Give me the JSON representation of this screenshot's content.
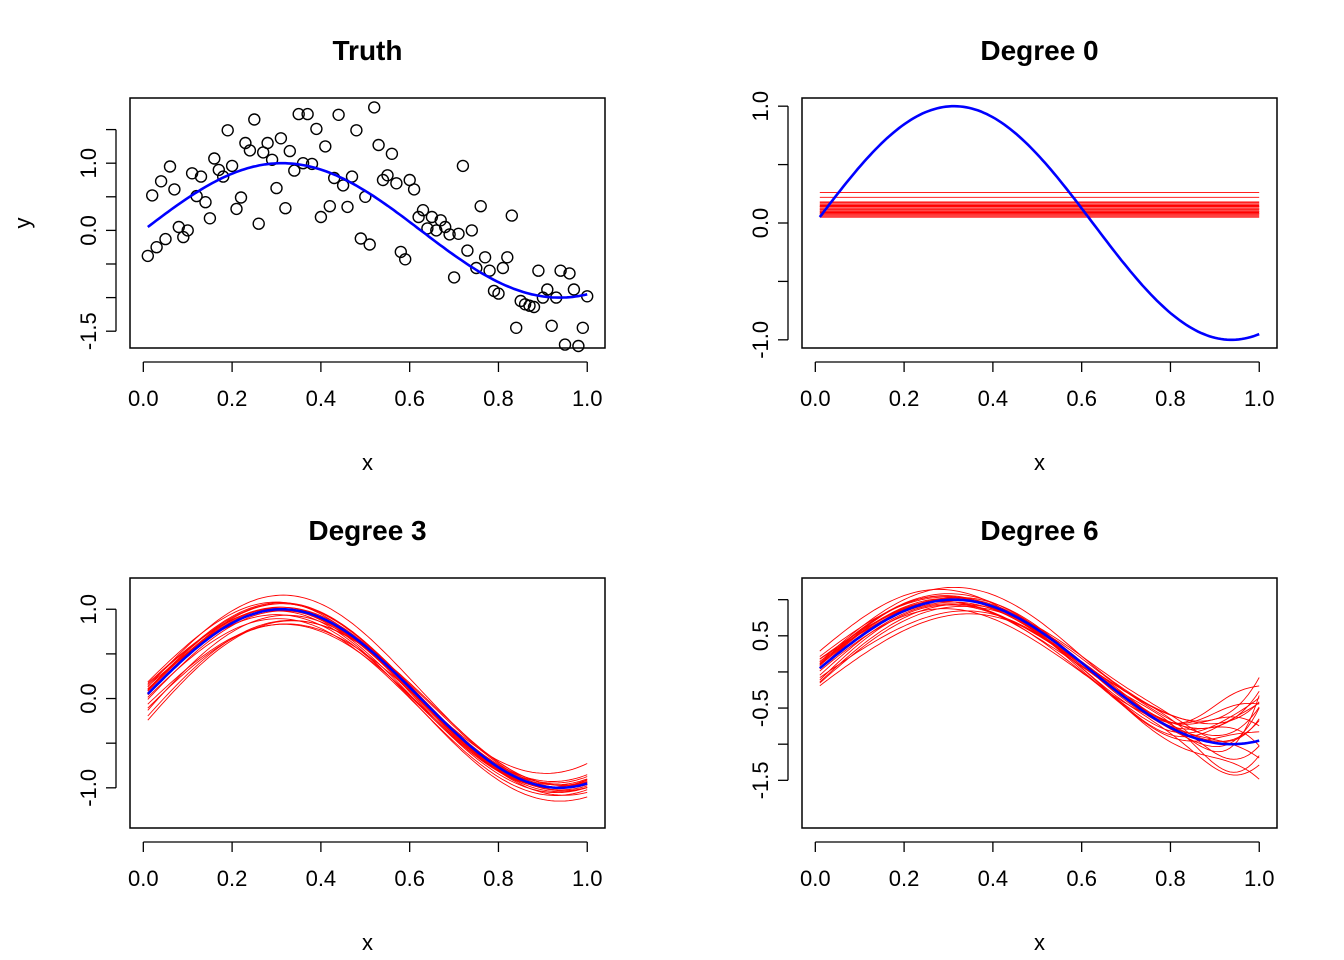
{
  "chart_data": [
    {
      "type": "scatter",
      "title": "Truth",
      "xlabel": "x",
      "ylabel": "y",
      "xlim": [
        -0.03,
        1.04
      ],
      "ylim": [
        -1.75,
        1.97
      ],
      "xticks": [
        0.0,
        0.2,
        0.4,
        0.6,
        0.8,
        1.0
      ],
      "xtick_labels": [
        "0.0",
        "0.2",
        "0.4",
        "0.6",
        "0.8",
        "1.0"
      ],
      "yticks": [
        -1.5,
        -1.0,
        -0.5,
        0.0,
        0.5,
        1.0,
        1.5
      ],
      "ytick_labels": [
        "-1.5",
        "",
        "",
        "0.0",
        "",
        "1.0",
        ""
      ],
      "truth": {
        "color": "#0000ff",
        "function": "sin(2*pi*x*0.8)"
      },
      "points_x": [
        0.01,
        0.02,
        0.03,
        0.04,
        0.05,
        0.06,
        0.07,
        0.08,
        0.09,
        0.1,
        0.11,
        0.12,
        0.13,
        0.14,
        0.15,
        0.16,
        0.17,
        0.18,
        0.19,
        0.2,
        0.21,
        0.22,
        0.23,
        0.24,
        0.25,
        0.26,
        0.27,
        0.28,
        0.29,
        0.3,
        0.31,
        0.32,
        0.33,
        0.34,
        0.35,
        0.36,
        0.37,
        0.38,
        0.39,
        0.4,
        0.41,
        0.42,
        0.43,
        0.44,
        0.45,
        0.46,
        0.47,
        0.48,
        0.49,
        0.5,
        0.51,
        0.52,
        0.53,
        0.54,
        0.55,
        0.56,
        0.57,
        0.58,
        0.59,
        0.6,
        0.61,
        0.62,
        0.63,
        0.64,
        0.65,
        0.66,
        0.67,
        0.68,
        0.69,
        0.7,
        0.71,
        0.72,
        0.73,
        0.74,
        0.75,
        0.76,
        0.77,
        0.78,
        0.79,
        0.8,
        0.81,
        0.82,
        0.83,
        0.84,
        0.85,
        0.86,
        0.87,
        0.88,
        0.89,
        0.9,
        0.91,
        0.92,
        0.93,
        0.94,
        0.95,
        0.96,
        0.97,
        0.98,
        0.99,
        1.0
      ],
      "points_y": [
        -0.38,
        0.52,
        -0.25,
        0.73,
        -0.13,
        0.95,
        0.61,
        0.05,
        -0.1,
        0.0,
        0.85,
        0.51,
        0.8,
        0.42,
        0.18,
        1.07,
        0.9,
        0.8,
        1.49,
        0.96,
        0.32,
        0.49,
        1.3,
        1.19,
        1.65,
        0.1,
        1.16,
        1.3,
        1.05,
        0.63,
        1.37,
        0.33,
        1.18,
        0.89,
        1.73,
        1.0,
        1.73,
        0.99,
        1.51,
        0.2,
        1.25,
        0.36,
        0.78,
        1.72,
        0.67,
        0.35,
        0.8,
        1.49,
        -0.12,
        0.5,
        -0.21,
        1.83,
        1.27,
        0.75,
        0.82,
        1.14,
        0.7,
        -0.32,
        -0.43,
        0.75,
        0.61,
        0.2,
        0.3,
        0.03,
        0.2,
        0.0,
        0.15,
        0.05,
        -0.06,
        -0.7,
        -0.05,
        0.96,
        -0.3,
        0.0,
        -0.56,
        0.36,
        -0.4,
        -0.6,
        -0.9,
        -0.94,
        -0.56,
        -0.4,
        0.22,
        -1.45,
        -1.05,
        -1.1,
        -1.12,
        -1.14,
        -0.6,
        -1.0,
        -0.88,
        -1.42,
        -1.0,
        -0.6,
        -1.7,
        -0.64,
        -0.88,
        -1.72,
        -1.45,
        -0.98
      ]
    },
    {
      "type": "line",
      "title": "Degree 0",
      "xlabel": "x",
      "ylabel": "",
      "xlim": [
        -0.03,
        1.04
      ],
      "ylim": [
        -1.07,
        1.07
      ],
      "xticks": [
        0.0,
        0.2,
        0.4,
        0.6,
        0.8,
        1.0
      ],
      "xtick_labels": [
        "0.0",
        "0.2",
        "0.4",
        "0.6",
        "0.8",
        "1.0"
      ],
      "yticks": [
        -1.0,
        -0.5,
        0.0,
        0.5,
        1.0
      ],
      "ytick_labels": [
        "-1.0",
        "",
        "0.0",
        "",
        "1.0"
      ],
      "truth": {
        "color": "#0000ff",
        "function": "sin(2*pi*x*0.8)"
      },
      "fit_color": "#ff0000",
      "degree": 0,
      "fits": [
        [
          0.26
        ],
        [
          0.22
        ],
        [
          0.18
        ],
        [
          0.16
        ],
        [
          0.15
        ],
        [
          0.14
        ],
        [
          0.13
        ],
        [
          0.12
        ],
        [
          0.11
        ],
        [
          0.1
        ],
        [
          0.09
        ],
        [
          0.08
        ],
        [
          0.07
        ],
        [
          0.06
        ],
        [
          0.05
        ],
        [
          0.12
        ],
        [
          0.14
        ],
        [
          0.1
        ],
        [
          0.08
        ],
        [
          0.17
        ]
      ]
    },
    {
      "type": "line",
      "title": "Degree 3",
      "xlabel": "x",
      "ylabel": "",
      "xlim": [
        -0.03,
        1.04
      ],
      "ylim": [
        -1.45,
        1.35
      ],
      "xticks": [
        0.0,
        0.2,
        0.4,
        0.6,
        0.8,
        1.0
      ],
      "xtick_labels": [
        "0.0",
        "0.2",
        "0.4",
        "0.6",
        "0.8",
        "1.0"
      ],
      "yticks": [
        -1.0,
        -0.5,
        0.0,
        0.5,
        1.0
      ],
      "ytick_labels": [
        "-1.0",
        "",
        "0.0",
        "",
        "1.0"
      ],
      "truth": {
        "color": "#0000ff",
        "function": "sin(2*pi*x*0.8)"
      },
      "fit_color": "#ff0000",
      "degree": 3,
      "fits": [
        [
          0.05,
          0.97,
          -0.98,
          -0.04,
          0.2,
          0.3
        ],
        [
          -0.25,
          1.0,
          -1.1,
          0.2,
          -0.3,
          0.4
        ],
        [
          0.22,
          0.9,
          -0.9,
          -0.2,
          0.3,
          0.2
        ],
        [
          0.0,
          0.96,
          -0.96,
          0.1,
          0.4,
          0.25
        ],
        [
          -0.4,
          1.12,
          -1.05,
          0.35,
          0.0,
          0.1
        ],
        [
          0.15,
          0.83,
          -0.92,
          -0.12,
          -0.2,
          0.5
        ],
        [
          0.08,
          1.05,
          -1.2,
          0.0,
          0.15,
          0.0
        ],
        [
          -0.1,
          1.0,
          -0.85,
          0.05,
          0.25,
          -0.15
        ],
        [
          0.1,
          0.95,
          -1.05,
          -0.1,
          -0.25,
          0.2
        ],
        [
          -0.3,
          1.08,
          -1.0,
          0.25,
          0.35,
          0.3
        ],
        [
          0.18,
          0.86,
          -0.55,
          -0.05,
          0.1,
          0.35
        ],
        [
          0.02,
          1.02,
          -1.02,
          0.0,
          0.0,
          0.15
        ],
        [
          -0.05,
          0.9,
          -1.15,
          0.15,
          0.2,
          0.45
        ],
        [
          0.12,
          1.1,
          -0.95,
          -0.18,
          0.05,
          -0.1
        ],
        [
          -0.18,
          0.94,
          -1.1,
          0.08,
          -0.35,
          0.1
        ],
        [
          0.06,
          0.99,
          -0.8,
          -0.06,
          0.3,
          0.05
        ],
        [
          -0.48,
          1.15,
          -1.0,
          0.4,
          0.1,
          0.2
        ],
        [
          0.2,
          0.88,
          -1.08,
          -0.15,
          -0.1,
          0.3
        ],
        [
          -0.02,
          1.04,
          -0.9,
          0.04,
          0.45,
          -0.05
        ],
        [
          0.09,
          0.92,
          -1.3,
          -0.02,
          0.15,
          0.25
        ]
      ]
    },
    {
      "type": "line",
      "title": "Degree 6",
      "xlabel": "x",
      "ylabel": "",
      "xlim": [
        -0.03,
        1.04
      ],
      "ylim": [
        -2.16,
        1.3
      ],
      "xticks": [
        0.0,
        0.2,
        0.4,
        0.6,
        0.8,
        1.0
      ],
      "xtick_labels": [
        "0.0",
        "0.2",
        "0.4",
        "0.6",
        "0.8",
        "1.0"
      ],
      "yticks": [
        -1.5,
        -1.0,
        -0.5,
        0.0,
        0.5,
        1.0
      ],
      "ytick_labels": [
        "-1.5",
        "",
        "-0.5",
        "",
        "0.5",
        ""
      ],
      "truth": {
        "color": "#0000ff",
        "function": "sin(2*pi*x*0.8)"
      },
      "fit_color": "#ff0000",
      "degree": 6,
      "fits": [
        [
          0.05,
          0.97,
          -0.98,
          -0.04,
          0.2,
          0.3,
          0.5,
          0.1
        ],
        [
          -0.35,
          1.0,
          -1.1,
          0.2,
          -0.3,
          0.4,
          0.8,
          0.3
        ],
        [
          0.35,
          0.9,
          -0.9,
          -0.2,
          0.3,
          0.2,
          0.4,
          0.6
        ],
        [
          0.0,
          0.96,
          -0.96,
          0.1,
          0.4,
          0.25,
          0.2,
          0.4
        ],
        [
          -0.3,
          1.12,
          -1.05,
          0.35,
          0.0,
          0.1,
          0.6,
          0.2
        ],
        [
          0.2,
          0.83,
          -0.92,
          -0.12,
          -0.2,
          0.5,
          0.3,
          0.7
        ],
        [
          0.1,
          1.05,
          -1.2,
          0.0,
          0.15,
          0.0,
          0.9,
          0.5
        ],
        [
          -0.15,
          1.0,
          -0.85,
          0.05,
          0.25,
          -0.15,
          0.1,
          0.8
        ],
        [
          0.15,
          0.95,
          -1.05,
          -0.1,
          -0.25,
          0.2,
          0.7,
          0.2
        ],
        [
          -0.25,
          1.08,
          -1.0,
          0.25,
          0.35,
          0.3,
          0.5,
          0.9
        ],
        [
          0.25,
          0.86,
          -0.6,
          -0.05,
          0.1,
          0.35,
          0.2,
          0.3
        ],
        [
          0.02,
          1.02,
          -1.02,
          0.0,
          0.0,
          0.15,
          0.6,
          0.6
        ],
        [
          -0.05,
          0.9,
          -1.15,
          0.15,
          0.2,
          0.45,
          0.3,
          0.1
        ],
        [
          0.12,
          1.1,
          -0.95,
          -0.18,
          0.05,
          -0.1,
          0.8,
          0.4
        ],
        [
          -0.18,
          0.94,
          -1.1,
          0.08,
          -0.35,
          0.1,
          0.4,
          0.7
        ],
        [
          0.06,
          0.99,
          -0.8,
          -0.06,
          0.3,
          0.05,
          0.2,
          0.5
        ],
        [
          -0.28,
          1.15,
          -1.0,
          0.4,
          0.1,
          0.2,
          0.7,
          0.3
        ],
        [
          0.2,
          0.88,
          -1.08,
          -0.15,
          -0.1,
          0.3,
          0.9,
          0.8
        ],
        [
          -0.02,
          1.04,
          -0.9,
          0.04,
          0.45,
          -0.05,
          0.5,
          0.2
        ],
        [
          0.09,
          0.92,
          -1.3,
          -0.02,
          0.15,
          0.25,
          0.3,
          0.6
        ]
      ]
    }
  ]
}
